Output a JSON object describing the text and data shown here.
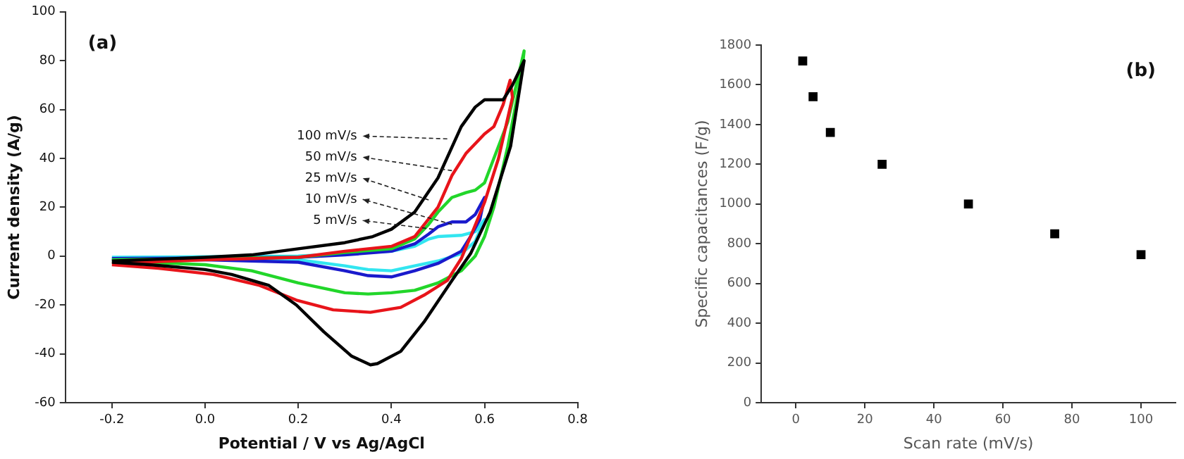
{
  "chart_data": [
    {
      "type": "line",
      "title": "(a)",
      "xlabel": "Potential / V vs Ag/AgCl",
      "ylabel": "Current density (A/g)",
      "xlim": [
        -0.3,
        0.8
      ],
      "xticks": [
        {
          "value": -0.2,
          "label": "-0.2"
        },
        {
          "value": 0,
          "label": "0.0"
        },
        {
          "value": 0.2,
          "label": "0.2"
        },
        {
          "value": 0.4,
          "label": "0.4"
        },
        {
          "value": 0.6,
          "label": "0.6"
        },
        {
          "value": 0.8,
          "label": "0.8"
        }
      ],
      "ylim": [
        -60,
        100
      ],
      "yticks": [
        -60,
        -40,
        -20,
        0,
        20,
        40,
        60,
        80,
        100
      ],
      "grid": false,
      "legend": false,
      "marker": "none",
      "series": [
        {
          "color": "#000000",
          "x": [
            -0.2,
            0.0,
            0.1,
            0.2,
            0.3,
            0.36,
            0.4,
            0.45,
            0.5,
            0.55,
            0.58,
            0.6,
            0.64,
            0.66,
            0.685,
            0.656,
            0.612,
            0.57,
            0.53,
            0.47,
            0.42,
            0.37,
            0.355,
            0.315,
            0.255,
            0.196,
            0.137,
            0.057,
            0.0,
            -0.12,
            -0.2
          ],
          "values": [
            -2,
            -0.5,
            0.5,
            3,
            5.5,
            8,
            11,
            18,
            32,
            53,
            61,
            64,
            64,
            70,
            80,
            45,
            18,
            1,
            -10,
            -27,
            -39,
            -44,
            -44.5,
            -41,
            -31,
            -20,
            -12,
            -7.5,
            -5.5,
            -3.5,
            -2.5
          ]
        },
        {
          "color": "#e8141a",
          "x": [
            -0.2,
            0.0,
            0.2,
            0.3,
            0.4,
            0.45,
            0.5,
            0.53,
            0.56,
            0.6,
            0.62,
            0.64,
            0.655,
            0.66,
            0.63,
            0.6,
            0.57,
            0.55,
            0.52,
            0.47,
            0.42,
            0.355,
            0.275,
            0.196,
            0.117,
            0.018,
            -0.1,
            -0.2
          ],
          "values": [
            -3,
            -1.5,
            -0.5,
            2,
            4,
            8,
            20,
            33,
            42,
            50,
            53,
            62,
            72,
            65,
            40,
            22,
            8,
            -1,
            -10,
            -16,
            -21,
            -23,
            -22,
            -18,
            -12,
            -7.5,
            -5,
            -3.5
          ]
        },
        {
          "color": "#22d62a",
          "x": [
            -0.2,
            0.2,
            0.3,
            0.4,
            0.45,
            0.48,
            0.5,
            0.53,
            0.56,
            0.58,
            0.6,
            0.62,
            0.65,
            0.685,
            0.68,
            0.65,
            0.62,
            0.6,
            0.58,
            0.55,
            0.5,
            0.45,
            0.4,
            0.35,
            0.3,
            0.2,
            0.1,
            0.0,
            -0.2
          ],
          "values": [
            -1.5,
            -0.5,
            1.5,
            3,
            7,
            13,
            18,
            24,
            26,
            27,
            30,
            40,
            55,
            84,
            75,
            45,
            20,
            8,
            0,
            -6,
            -11,
            -14,
            -15,
            -15.5,
            -15,
            -11,
            -6,
            -3.5,
            -2
          ]
        },
        {
          "color": "#1a1acc",
          "x": [
            -0.2,
            0.2,
            0.3,
            0.4,
            0.45,
            0.48,
            0.5,
            0.53,
            0.56,
            0.58,
            0.6,
            0.59,
            0.57,
            0.55,
            0.5,
            0.45,
            0.4,
            0.35,
            0.3,
            0.2,
            0.0,
            -0.2
          ],
          "values": [
            -1,
            -0.5,
            0.5,
            2,
            5,
            9,
            12,
            14,
            14,
            17,
            24,
            15,
            8,
            2,
            -3,
            -6,
            -8.5,
            -8,
            -6,
            -2.5,
            -1.5,
            -1.5
          ]
        },
        {
          "color": "#33e6f0",
          "x": [
            -0.2,
            0.2,
            0.4,
            0.45,
            0.48,
            0.5,
            0.55,
            0.58,
            0.6,
            0.58,
            0.55,
            0.5,
            0.45,
            0.4,
            0.35,
            0.3,
            0.2,
            -0.2
          ],
          "values": [
            -0.5,
            0,
            2,
            4,
            7,
            8,
            8.5,
            10,
            15,
            6,
            1,
            -2,
            -4,
            -6,
            -5.5,
            -4,
            -1.5,
            -1
          ]
        }
      ],
      "annotations": [
        {
          "text": "100 mV/s",
          "x": 0.52,
          "y": 48
        },
        {
          "text": "50 mV/s",
          "x": 0.53,
          "y": 35
        },
        {
          "text": "25 mV/s",
          "x": 0.48,
          "y": 23
        },
        {
          "text": "10 mV/s",
          "x": 0.53,
          "y": 13
        },
        {
          "text": "5 mV/s",
          "x": 0.49,
          "y": 11
        }
      ]
    },
    {
      "type": "scatter",
      "title": "(b)",
      "xlabel": "Scan rate (mV/s)",
      "ylabel": "Specific capacitances (F/g)",
      "xlim": [
        -10,
        110
      ],
      "xticks": [
        0,
        20,
        40,
        60,
        80,
        100
      ],
      "ylim": [
        0,
        1800
      ],
      "yticks": [
        0,
        200,
        400,
        600,
        800,
        1000,
        1200,
        1400,
        1600,
        1800
      ],
      "grid": false,
      "legend": false,
      "marker": "square",
      "x": [
        2,
        5,
        10,
        25,
        50,
        75,
        100
      ],
      "series": [
        {
          "color": "#000000",
          "values": [
            1720,
            1540,
            1360,
            1200,
            1000,
            850,
            745
          ]
        }
      ]
    }
  ]
}
